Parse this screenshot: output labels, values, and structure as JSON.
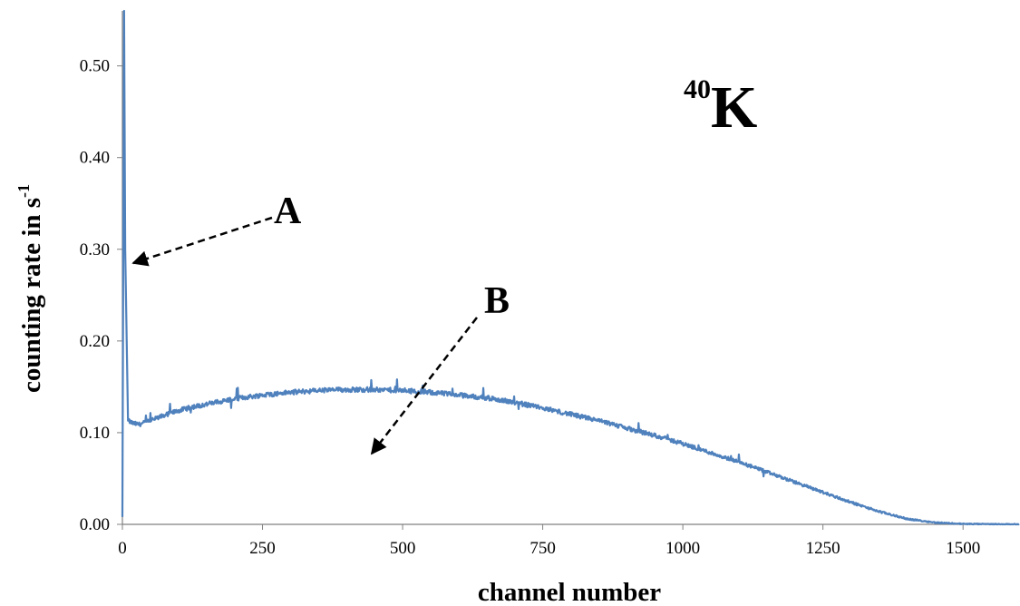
{
  "colors": {
    "series": "#4f81bd",
    "axis": "#808080",
    "text": "#000000"
  },
  "chart_data": {
    "type": "line",
    "title": "",
    "xlabel": "channel number",
    "ylabel_main": "counting rate in s",
    "ylabel_sup": "-1",
    "xlim": [
      0,
      1600
    ],
    "ylim": [
      0,
      0.56
    ],
    "xticks": [
      0,
      250,
      500,
      750,
      1000,
      1250,
      1500
    ],
    "yticks": [
      0.0,
      0.1,
      0.2,
      0.3,
      0.4,
      0.5
    ],
    "xtick_labels": [
      "0",
      "250",
      "500",
      "750",
      "1000",
      "1250",
      "1500"
    ],
    "ytick_labels": [
      "0.00",
      "0.10",
      "0.20",
      "0.30",
      "0.40",
      "0.50"
    ],
    "grid": false,
    "legend": "none",
    "series": [
      {
        "x": [
          0,
          3,
          5,
          10,
          20,
          30,
          50,
          75,
          100,
          125,
          150,
          200,
          250,
          300,
          350,
          400,
          450,
          500,
          550,
          600,
          650,
          700,
          750,
          800,
          850,
          900,
          950,
          1000,
          1050,
          1100,
          1150,
          1200,
          1250,
          1300,
          1350,
          1400,
          1450,
          1500,
          1550,
          1600
        ],
        "y": [
          0.008,
          0.56,
          0.3,
          0.113,
          0.11,
          0.109,
          0.113,
          0.119,
          0.124,
          0.128,
          0.131,
          0.137,
          0.141,
          0.144,
          0.146,
          0.147,
          0.147,
          0.146,
          0.144,
          0.141,
          0.138,
          0.133,
          0.127,
          0.12,
          0.113,
          0.105,
          0.097,
          0.088,
          0.078,
          0.068,
          0.057,
          0.046,
          0.035,
          0.024,
          0.014,
          0.006,
          0.002,
          0.0005,
          0.0002,
          0.0001
        ]
      }
    ],
    "annotations": {
      "a_label": "A",
      "b_label": "B",
      "isotope_mass": "40",
      "isotope_element": "K"
    }
  }
}
